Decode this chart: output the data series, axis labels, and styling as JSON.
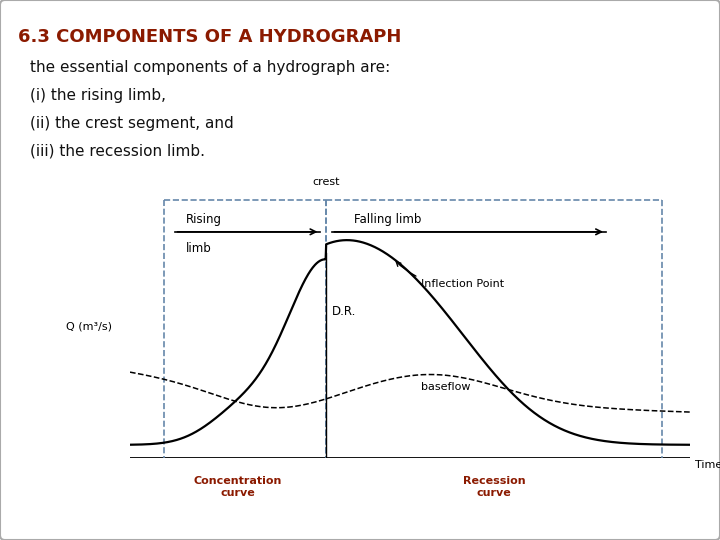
{
  "title": "6.3 COMPONENTS OF A HYDROGRAPH",
  "title_color": "#8B1A00",
  "body_text": [
    "the essential components of a hydrograph are:",
    "(i) the rising limb,",
    "(ii) the crest segment, and",
    "(iii) the recession limb."
  ],
  "background_color": "#ffffff",
  "border_color": "#aaaaaa",
  "fig_width": 7.2,
  "fig_height": 5.4,
  "dpi": 100,
  "curve_color": "#000000",
  "baseflow_color": "#000000",
  "dashed_box_color": "#6688aa",
  "annotation_color": "#8B1A00",
  "labels": {
    "crest": "crest",
    "rising": "Rising",
    "limb": "limb",
    "falling_limb": "Falling limb",
    "inflection": "Inflection Point",
    "DR": "D.R.",
    "baseflow": "baseflow",
    "time": "Time",
    "Q_label": "Q (m³/s)",
    "concentration": "Concentration\ncurve",
    "recession": "Recession\ncurve"
  }
}
